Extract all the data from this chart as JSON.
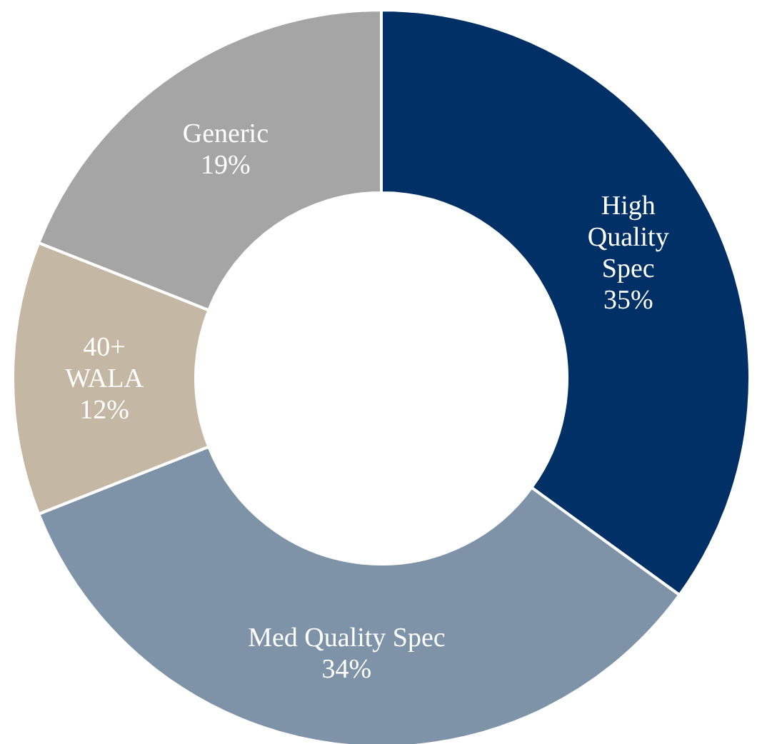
{
  "chart_data": {
    "type": "donut",
    "categories": [
      "High\nQuality\nSpec",
      "Med Quality Spec",
      "40+\nWALA",
      "Generic"
    ],
    "values": [
      35,
      34,
      12,
      19
    ],
    "colors": [
      "#003066",
      "#7f93a8",
      "#c4b8a5",
      "#a5a5a5"
    ],
    "value_labels": [
      "35%",
      "34%",
      "12%",
      "19%"
    ]
  }
}
